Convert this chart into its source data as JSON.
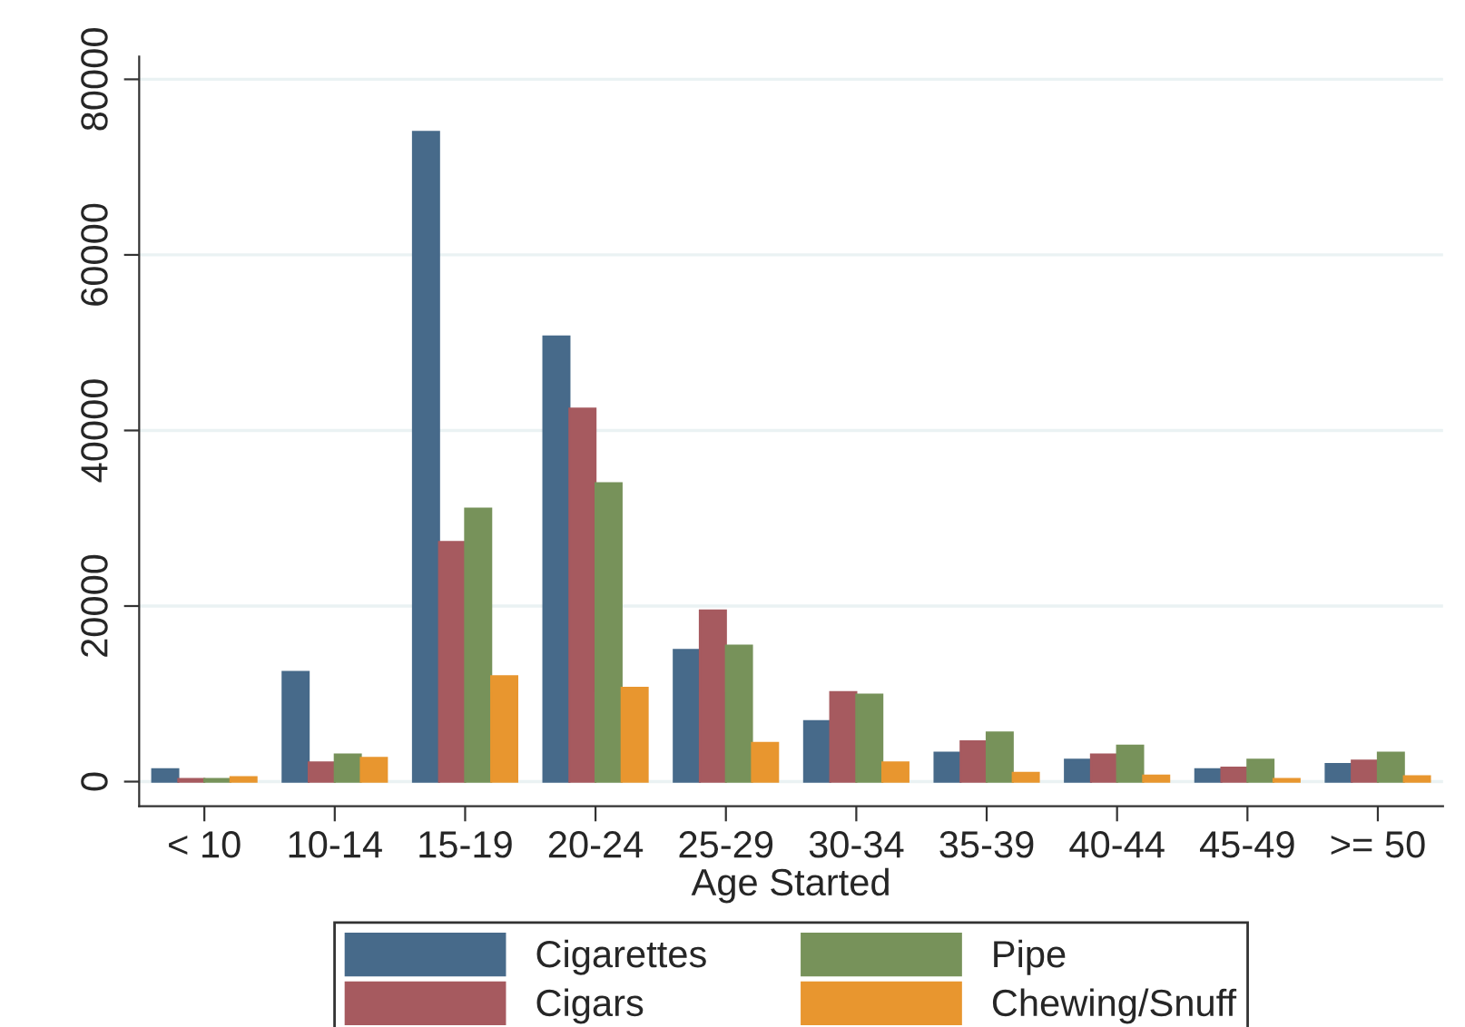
{
  "chart_data": {
    "type": "bar",
    "xlabel": "Age Started",
    "categories": [
      "< 10",
      "10-14",
      "15-19",
      "20-24",
      "25-29",
      "30-34",
      "35-39",
      "40-44",
      "45-49",
      ">= 50"
    ],
    "series": [
      {
        "name": "Cigarettes",
        "color": "#476a8a",
        "values": [
          1400,
          12500,
          74000,
          50700,
          15000,
          6900,
          3300,
          2500,
          1400,
          2000
        ]
      },
      {
        "name": "Cigars",
        "color": "#a65a5f",
        "values": [
          300,
          2200,
          27300,
          42500,
          19500,
          10200,
          4600,
          3100,
          1600,
          2400
        ]
      },
      {
        "name": "Pipe",
        "color": "#77925a",
        "values": [
          300,
          3100,
          31100,
          34000,
          15500,
          9900,
          5600,
          4100,
          2500,
          3300
        ]
      },
      {
        "name": "Chewing/Snuff",
        "color": "#e8962f",
        "values": [
          500,
          2700,
          12000,
          10700,
          4400,
          2200,
          1000,
          700,
          300,
          600
        ]
      }
    ],
    "ylim": [
      -2800,
      82600
    ],
    "yticks": [
      0,
      20000,
      40000,
      60000,
      80000
    ],
    "grid": "y",
    "legend": "bottom"
  }
}
